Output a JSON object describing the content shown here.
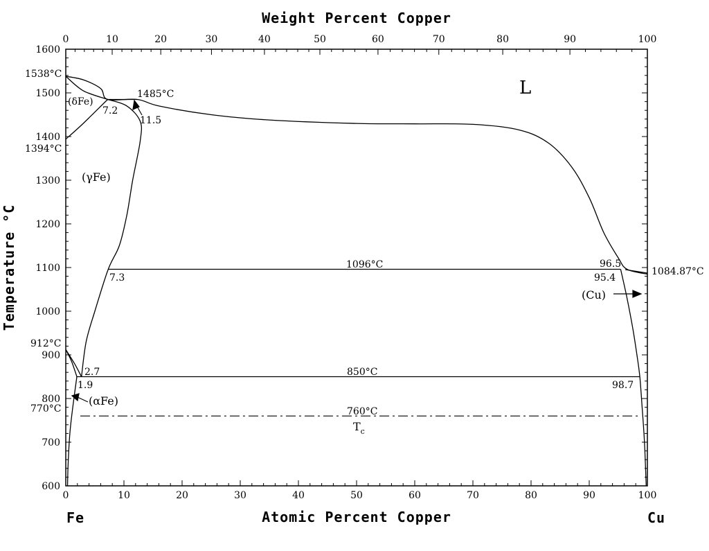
{
  "chart_data": {
    "type": "line",
    "title": "",
    "top_axis": {
      "label": "Weight Percent Copper",
      "ticks": [
        "0",
        "10",
        "20",
        "30",
        "40",
        "50",
        "60",
        "70",
        "80",
        "90",
        "100"
      ],
      "values": [
        0,
        7.98,
        16.33,
        25.05,
        34.16,
        43.69,
        53.68,
        64.14,
        75.13,
        86.68,
        100
      ]
    },
    "xlabel": "Atomic Percent Copper",
    "ylabel": "Temperature °C",
    "xlim": [
      0,
      100
    ],
    "ylim": [
      600,
      1600
    ],
    "x_ticks": [
      "0",
      "10",
      "20",
      "30",
      "40",
      "50",
      "60",
      "70",
      "80",
      "90",
      "100"
    ],
    "y_ticks": [
      "600",
      "700",
      "800",
      "900",
      "1000",
      "1100",
      "1200",
      "1300",
      "1400",
      "1500",
      "1600"
    ],
    "end_labels": {
      "left": "Fe",
      "right": "Cu"
    },
    "temperature_labels": [
      {
        "text": "1538°C",
        "x": 0,
        "y": 1538
      },
      {
        "text": "1485°C",
        "x": 12.3,
        "y": 1485
      },
      {
        "text": "1394°C",
        "x": 0,
        "y": 1394
      },
      {
        "text": "1096°C",
        "x": 50,
        "y": 1096
      },
      {
        "text": "1084.87°C",
        "x": 100,
        "y": 1084.87
      },
      {
        "text": "912°C",
        "x": 0,
        "y": 912
      },
      {
        "text": "850°C",
        "x": 50,
        "y": 850
      },
      {
        "text": "770°C",
        "x": 0,
        "y": 770
      },
      {
        "text": "760°C",
        "x": 50,
        "y": 760
      }
    ],
    "composition_labels": [
      "7.2",
      "11.5",
      "7.3",
      "96.5",
      "95.4",
      "2.7",
      "1.9",
      "98.7"
    ],
    "phase_labels": {
      "liquid": "L",
      "delta": "(δFe)",
      "gamma": "(γFe)",
      "alpha": "(αFe)",
      "copper": "(Cu)",
      "curie": "T",
      "curie_sub": "c"
    },
    "series": [
      {
        "name": "L",
        "points": [
          [
            0,
            1538
          ],
          [
            3,
            1530
          ],
          [
            6,
            1510
          ],
          [
            7.2,
            1485
          ],
          [
            12.3,
            1485
          ],
          [
            16,
            1470
          ],
          [
            25,
            1450
          ],
          [
            35,
            1438
          ],
          [
            50,
            1430
          ],
          [
            60,
            1429
          ],
          [
            70,
            1428
          ],
          [
            78,
            1415
          ],
          [
            83,
            1385
          ],
          [
            87,
            1330
          ],
          [
            90,
            1260
          ],
          [
            92.5,
            1180
          ],
          [
            95,
            1122
          ],
          [
            96.5,
            1096
          ],
          [
            100,
            1084.87
          ]
        ]
      },
      {
        "name": "(δFe)",
        "points": [
          [
            0,
            1538
          ],
          [
            3,
            1505
          ],
          [
            7.2,
            1485
          ]
        ]
      },
      {
        "name": "(δFe)",
        "points": [
          [
            0,
            1394
          ],
          [
            3,
            1430
          ],
          [
            7.2,
            1485
          ]
        ]
      },
      {
        "name": "(γFe)",
        "points": [
          [
            7.2,
            1485
          ],
          [
            10.5,
            1470
          ],
          [
            12.8,
            1435
          ],
          [
            12.8,
            1390
          ],
          [
            11.5,
            1300
          ],
          [
            10.5,
            1220
          ],
          [
            9.2,
            1150
          ],
          [
            7.3,
            1096
          ],
          [
            5,
            1000
          ],
          [
            3.5,
            930
          ],
          [
            2.7,
            850
          ]
        ]
      },
      {
        "name": "(γFe)",
        "points": [
          [
            0,
            912
          ],
          [
            1.5,
            880
          ],
          [
            2.7,
            850
          ]
        ]
      },
      {
        "name": "(αFe)",
        "points": [
          [
            0,
            912
          ],
          [
            1,
            885
          ],
          [
            1.9,
            850
          ]
        ]
      },
      {
        "name": "(αFe)",
        "points": [
          [
            1.9,
            850
          ],
          [
            1.2,
            780
          ],
          [
            0.7,
            720
          ],
          [
            0.4,
            650
          ],
          [
            0.3,
            600
          ]
        ]
      },
      {
        "name": "(Cu)",
        "points": [
          [
            95.4,
            1096
          ],
          [
            96.5,
            1030
          ],
          [
            97.5,
            960
          ],
          [
            98.2,
            900
          ],
          [
            98.7,
            850
          ],
          [
            99.1,
            780
          ],
          [
            99.5,
            700
          ],
          [
            99.8,
            600
          ]
        ]
      },
      {
        "name": "1096°C",
        "points": [
          [
            7.3,
            1096
          ],
          [
            95.4,
            1096
          ]
        ]
      },
      {
        "name": "850°C",
        "points": [
          [
            1.9,
            850
          ],
          [
            98.7,
            850
          ]
        ]
      },
      {
        "name": "1485°C",
        "points": [
          [
            7.2,
            1485
          ],
          [
            12.3,
            1485
          ]
        ]
      },
      {
        "name": "760°C",
        "points": [
          [
            2.5,
            760
          ],
          [
            98.5,
            760
          ]
        ]
      }
    ],
    "colors": {
      "line": "#000000",
      "background": "#ffffff"
    },
    "grid": false
  }
}
